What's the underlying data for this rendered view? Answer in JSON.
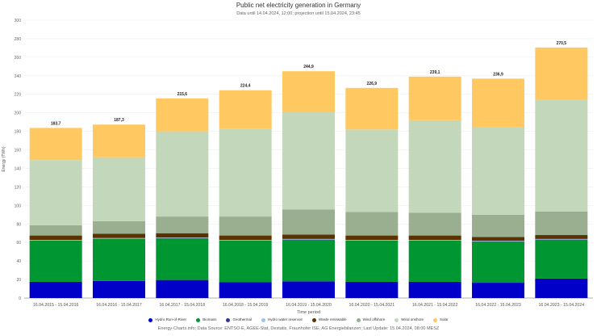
{
  "chart_data": {
    "type": "bar",
    "stacked": true,
    "title": "Public net electricity generation in Germany",
    "subtitle": "Data until 14.04.2024, 12:00; projection until 15.04.2024, 23:45",
    "xlabel": "Time period",
    "ylabel": "Energy (TWh)",
    "ylim": [
      0,
      300
    ],
    "yticks": [
      0,
      20,
      40,
      60,
      80,
      100,
      120,
      140,
      160,
      180,
      200,
      220,
      240,
      260,
      280,
      300
    ],
    "grid": true,
    "legend_position": "bottom",
    "categories": [
      "16.04.2015 - 15.04.2016",
      "16.04.2016 - 15.04.2017",
      "16.04.2017 - 15.04.2018",
      "16.04.2018 - 15.04.2019",
      "16.04.2019 - 15.04.2020",
      "16.04.2020 - 15.04.2021",
      "16.04.2021 - 15.04.2022",
      "16.04.2022 - 15.04.2023",
      "16.04.2023 - 15.04.2024"
    ],
    "totals": [
      "183,7",
      "187,3",
      "215,6",
      "224,4",
      "244,9",
      "226,9",
      "239,1",
      "236,9",
      "270,5"
    ],
    "series": [
      {
        "name": "Hydro Run-of-River",
        "color": "#0000c8",
        "values": [
          17.5,
          18.5,
          19.5,
          17,
          18,
          17.5,
          17.5,
          16.5,
          21
        ]
      },
      {
        "name": "Biomass",
        "color": "#009632",
        "values": [
          44.5,
          45.5,
          45,
          45,
          45,
          44.5,
          44.5,
          44.5,
          42
        ]
      },
      {
        "name": "Geothermal",
        "color": "#333399",
        "values": [
          0.2,
          0.2,
          0.2,
          0.2,
          0.2,
          0.2,
          0.2,
          0.2,
          0.2
        ]
      },
      {
        "name": "Hydro water reservoir",
        "color": "#a0c0f0",
        "values": [
          0.6,
          0.6,
          0.6,
          0.6,
          0.6,
          0.6,
          0.6,
          0.6,
          0.6
        ]
      },
      {
        "name": "Waste renewable",
        "color": "#5a3200",
        "values": [
          4.7,
          4.7,
          4.7,
          4.7,
          4.7,
          4.7,
          4.7,
          4.2,
          4.2
        ]
      },
      {
        "name": "Wind offshore",
        "color": "#9aae90",
        "values": [
          11,
          13.5,
          18,
          20.5,
          27,
          25.5,
          24.5,
          24,
          25.5
        ]
      },
      {
        "name": "Wind onshore",
        "color": "#c3d8bb",
        "values": [
          70.5,
          69,
          92,
          95,
          105.5,
          89,
          100,
          94.5,
          120.5
        ]
      },
      {
        "name": "Solar",
        "color": "#ffc860",
        "values": [
          34.7,
          35.3,
          35.6,
          41.4,
          43.9,
          44.9,
          47.1,
          52.4,
          56.5
        ]
      }
    ]
  },
  "footer": "Energy-Charts.info; Data Source: ENTSO-E, AGEE-Stat, Destatis, Fraunhofer ISE, AG Energiebilanzen; Last Update: 15.04.2024, 08:00 MESZ"
}
